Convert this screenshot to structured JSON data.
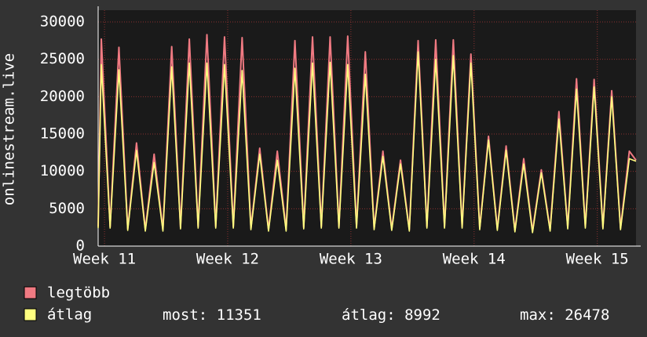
{
  "chart_data": {
    "type": "line",
    "y_label": "onlinestream.live",
    "xlim": [
      -0.36,
      30.2
    ],
    "xticks": [
      {
        "value": 0,
        "label": "Week 11"
      },
      {
        "value": 7,
        "label": "Week 12"
      },
      {
        "value": 14,
        "label": "Week 13"
      },
      {
        "value": 21,
        "label": "Week 14"
      },
      {
        "value": 28,
        "label": "Week 15"
      }
    ],
    "ylim": [
      0,
      30000
    ],
    "yticks": [
      0,
      5000,
      10000,
      15000,
      20000,
      25000,
      30000
    ],
    "grid": true,
    "x": [
      -0.36,
      -0.18,
      0.32,
      0.82,
      1.32,
      1.82,
      2.32,
      2.82,
      3.32,
      3.82,
      4.32,
      4.82,
      5.32,
      5.82,
      6.32,
      6.82,
      7.32,
      7.82,
      8.32,
      8.82,
      9.32,
      9.82,
      10.32,
      10.82,
      11.32,
      11.82,
      12.32,
      12.82,
      13.32,
      13.82,
      14.32,
      14.82,
      15.32,
      15.82,
      16.32,
      16.82,
      17.32,
      17.82,
      18.32,
      18.82,
      19.32,
      19.82,
      20.32,
      20.82,
      21.32,
      21.82,
      22.32,
      22.82,
      23.32,
      23.82,
      24.32,
      24.82,
      25.32,
      25.82,
      26.32,
      26.82,
      27.32,
      27.82,
      28.32,
      28.82,
      29.32,
      29.82,
      30.2
    ],
    "series": [
      {
        "name": "legtöbb",
        "color": "#f07a82",
        "values": [
          2600,
          27700,
          2600,
          26600,
          2300,
          13800,
          2200,
          12300,
          2200,
          26700,
          2500,
          27700,
          2600,
          28300,
          2600,
          28000,
          2600,
          27900,
          2400,
          13100,
          2200,
          12700,
          2200,
          27500,
          2500,
          28000,
          2600,
          28000,
          2600,
          28100,
          2600,
          26000,
          2400,
          12700,
          2300,
          11500,
          2200,
          27500,
          2600,
          27600,
          2600,
          27600,
          2600,
          25700,
          2400,
          14700,
          2300,
          13400,
          2100,
          11700,
          2000,
          10200,
          2200,
          18000,
          2500,
          22400,
          2600,
          22300,
          2500,
          20800,
          2400,
          12700,
          11500
        ]
      },
      {
        "name": "átlag",
        "color": "#ffff80",
        "values": [
          2400,
          24300,
          2400,
          23600,
          2100,
          12800,
          2000,
          11200,
          2000,
          24000,
          2300,
          24500,
          2400,
          24500,
          2400,
          24300,
          2400,
          23500,
          2200,
          12300,
          2000,
          11500,
          2000,
          23800,
          2300,
          24500,
          2400,
          24600,
          2400,
          24300,
          2400,
          23000,
          2200,
          12000,
          2100,
          11000,
          2000,
          26000,
          2400,
          25000,
          2400,
          25500,
          2400,
          24500,
          2200,
          14200,
          2100,
          12800,
          1900,
          11000,
          1800,
          9800,
          2000,
          17000,
          2300,
          21000,
          2400,
          21300,
          2300,
          20000,
          2200,
          11700,
          11351
        ]
      }
    ],
    "stats": [
      {
        "label": "most:",
        "value": 11351
      },
      {
        "label": "átlag:",
        "value": 8992
      },
      {
        "label": "max:",
        "value": 26478
      }
    ]
  }
}
